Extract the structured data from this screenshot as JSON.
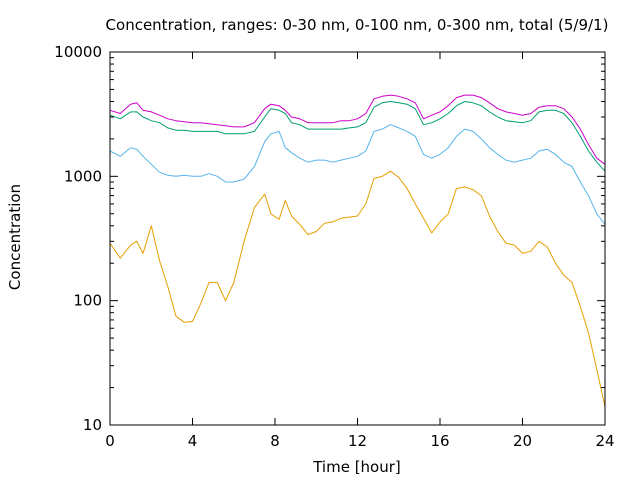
{
  "chart_data": {
    "type": "line",
    "title": "Concentration, ranges: 0-30 nm, 0-100 nm, 0-300 nm, total (5/9/1)",
    "xlabel": "Time [hour]",
    "ylabel": "Concentration",
    "xlim": [
      0,
      24
    ],
    "ylim": [
      10,
      10000
    ],
    "yscale": "log",
    "grid": false,
    "legend": "none",
    "xticks": [
      "0",
      "4",
      "8",
      "12",
      "16",
      "20",
      "24"
    ],
    "yticks": [
      "10",
      "100",
      "1000",
      "10000"
    ],
    "xtick_values": [
      0,
      4,
      8,
      12,
      16,
      20,
      24
    ],
    "ytick_values": [
      10,
      100,
      1000,
      10000
    ],
    "x": [
      0,
      0.5,
      1,
      1.3,
      1.6,
      2,
      2.4,
      2.8,
      3.2,
      3.6,
      4,
      4.4,
      4.8,
      5.2,
      5.6,
      6,
      6.5,
      7,
      7.5,
      7.8,
      8.2,
      8.5,
      8.8,
      9.2,
      9.6,
      10,
      10.4,
      10.8,
      11.2,
      11.6,
      12,
      12.4,
      12.8,
      13.2,
      13.6,
      14,
      14.4,
      14.8,
      15.2,
      15.6,
      16,
      16.4,
      16.8,
      17.2,
      17.6,
      18,
      18.4,
      18.8,
      19.2,
      19.6,
      20,
      20.4,
      20.8,
      21.2,
      21.6,
      22,
      22.4,
      22.8,
      23.2,
      23.6,
      24
    ],
    "series": [
      {
        "color": "#e69f00",
        "values": [
          290,
          220,
          280,
          300,
          240,
          400,
          210,
          130,
          75,
          67,
          68,
          95,
          140,
          140,
          100,
          140,
          300,
          560,
          720,
          500,
          450,
          640,
          480,
          410,
          340,
          360,
          420,
          430,
          460,
          470,
          480,
          600,
          960,
          1000,
          1100,
          980,
          800,
          600,
          460,
          350,
          430,
          500,
          800,
          820,
          780,
          700,
          480,
          360,
          290,
          280,
          240,
          250,
          300,
          270,
          200,
          160,
          140,
          90,
          55,
          28,
          14
        ]
      },
      {
        "color": "#56b4e9",
        "values": [
          1600,
          1450,
          1700,
          1650,
          1450,
          1250,
          1080,
          1020,
          1000,
          1020,
          1000,
          1000,
          1050,
          1000,
          900,
          900,
          950,
          1200,
          1900,
          2200,
          2300,
          1700,
          1550,
          1400,
          1300,
          1350,
          1350,
          1300,
          1350,
          1400,
          1450,
          1600,
          2300,
          2400,
          2600,
          2450,
          2300,
          2100,
          1500,
          1400,
          1500,
          1700,
          2100,
          2400,
          2300,
          2000,
          1700,
          1500,
          1350,
          1300,
          1350,
          1400,
          1600,
          1650,
          1500,
          1300,
          1200,
          900,
          700,
          500,
          410
        ]
      },
      {
        "color": "#009e73",
        "values": [
          3100,
          2900,
          3300,
          3300,
          3000,
          2800,
          2700,
          2450,
          2350,
          2350,
          2300,
          2300,
          2300,
          2300,
          2200,
          2200,
          2200,
          2300,
          3000,
          3500,
          3400,
          3200,
          2700,
          2600,
          2400,
          2400,
          2400,
          2400,
          2400,
          2450,
          2500,
          2700,
          3600,
          3900,
          4000,
          3900,
          3800,
          3500,
          2600,
          2700,
          2900,
          3200,
          3700,
          4000,
          3900,
          3700,
          3300,
          3000,
          2800,
          2750,
          2700,
          2800,
          3300,
          3400,
          3400,
          3200,
          2700,
          2100,
          1600,
          1300,
          1100
        ]
      },
      {
        "color": "#cc00cc",
        "values": [
          3400,
          3200,
          3800,
          3900,
          3400,
          3300,
          3100,
          2900,
          2800,
          2750,
          2700,
          2700,
          2650,
          2600,
          2550,
          2500,
          2500,
          2700,
          3500,
          3800,
          3700,
          3400,
          3000,
          2900,
          2700,
          2700,
          2700,
          2700,
          2800,
          2800,
          2900,
          3200,
          4200,
          4400,
          4500,
          4400,
          4200,
          3900,
          2900,
          3100,
          3300,
          3700,
          4300,
          4500,
          4500,
          4300,
          3900,
          3500,
          3300,
          3200,
          3100,
          3200,
          3600,
          3700,
          3700,
          3500,
          3000,
          2400,
          1800,
          1400,
          1250
        ]
      }
    ]
  }
}
